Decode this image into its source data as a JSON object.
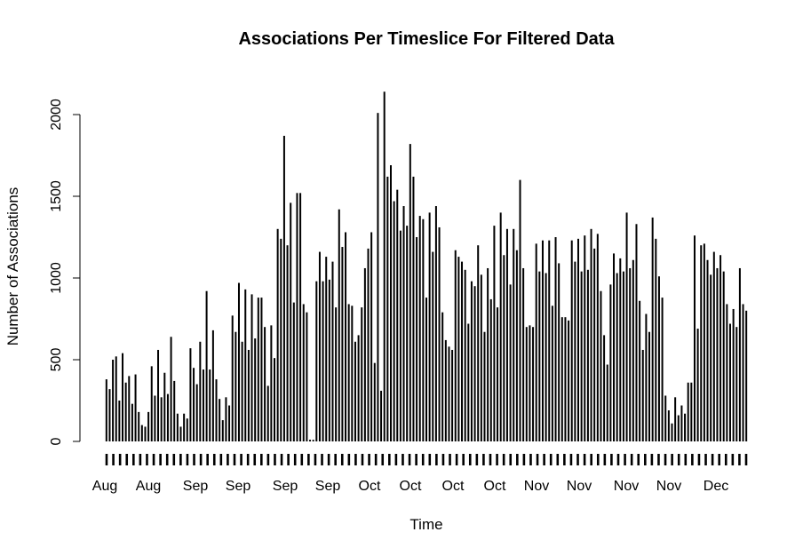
{
  "chart_data": {
    "type": "bar",
    "title": "Associations Per Timeslice For Filtered Data",
    "xlabel": "Time",
    "ylabel": "Number of Associations",
    "ylim": [
      0,
      2150
    ],
    "y_ticks": [
      0,
      500,
      1000,
      1500,
      2000
    ],
    "x_tick_labels": [
      "Aug",
      "Aug",
      "Sep",
      "Sep",
      "Sep",
      "Sep",
      "Oct",
      "Oct",
      "Oct",
      "Oct",
      "Nov",
      "Nov",
      "Nov",
      "Nov",
      "Dec"
    ],
    "grid": false,
    "legend": "none",
    "bar_fill": "#000000",
    "values": [
      380,
      320,
      500,
      520,
      250,
      540,
      360,
      400,
      230,
      410,
      180,
      100,
      90,
      180,
      460,
      280,
      560,
      270,
      420,
      290,
      640,
      370,
      170,
      90,
      170,
      140,
      570,
      450,
      350,
      610,
      440,
      920,
      440,
      680,
      380,
      260,
      130,
      270,
      220,
      770,
      670,
      970,
      610,
      930,
      560,
      900,
      630,
      880,
      880,
      700,
      340,
      710,
      510,
      1300,
      1240,
      1870,
      1200,
      1460,
      850,
      1520,
      1520,
      840,
      790,
      10,
      10,
      980,
      1160,
      980,
      1130,
      990,
      1100,
      820,
      1420,
      1190,
      1280,
      840,
      830,
      610,
      650,
      820,
      1060,
      1180,
      1280,
      480,
      2010,
      310,
      2140,
      1620,
      1690,
      1470,
      1540,
      1290,
      1440,
      1320,
      1820,
      1620,
      1250,
      1380,
      1360,
      880,
      1400,
      1160,
      1440,
      1310,
      790,
      620,
      580,
      560,
      1170,
      1130,
      1100,
      1050,
      720,
      980,
      950,
      1200,
      1020,
      670,
      1060,
      870,
      1320,
      820,
      1400,
      1140,
      1300,
      960,
      1300,
      1170,
      1600,
      1060,
      700,
      710,
      700,
      1210,
      1040,
      1230,
      1030,
      1230,
      830,
      1250,
      1090,
      760,
      760,
      740,
      1230,
      1100,
      1240,
      1040,
      1260,
      1050,
      1300,
      1180,
      1270,
      920,
      650,
      470,
      960,
      1150,
      1030,
      1120,
      1040,
      1400,
      1060,
      1110,
      1330,
      860,
      560,
      780,
      670,
      1370,
      1240,
      1010,
      880,
      280,
      190,
      110,
      270,
      160,
      220,
      170,
      360,
      360,
      1260,
      690,
      1200,
      1210,
      1110,
      1020,
      1160,
      1060,
      1140,
      1040,
      840,
      720,
      810,
      700,
      1060,
      840,
      800
    ]
  }
}
